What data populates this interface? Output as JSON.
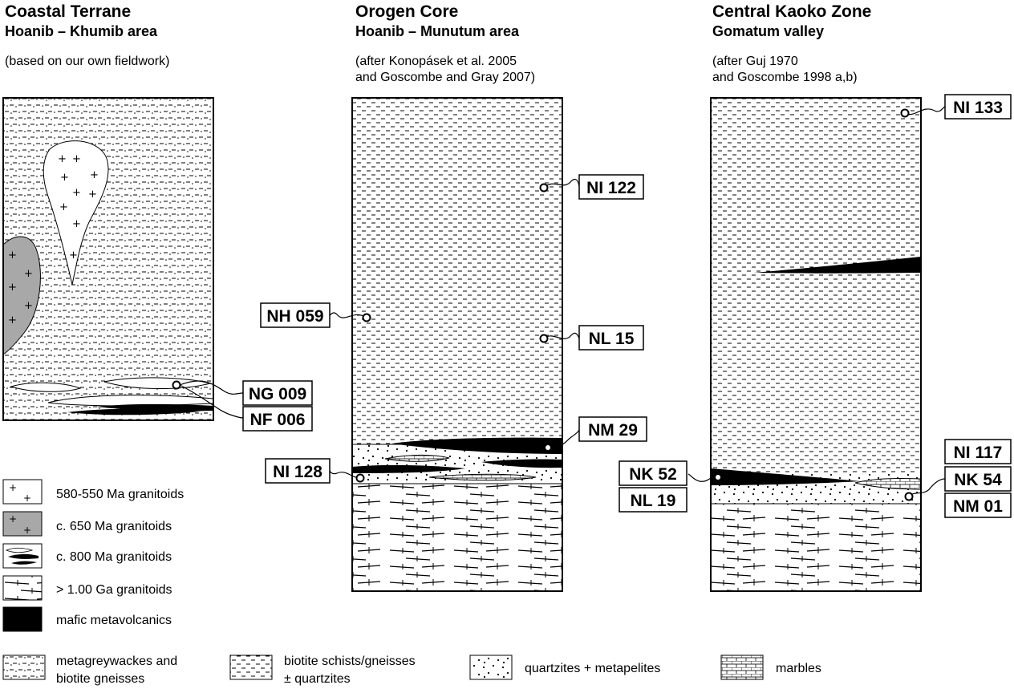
{
  "columns": [
    {
      "title": "Coastal Terrane",
      "subtitle": "Hoanib – Khumib area",
      "source_lines": [
        "(based on our own fieldwork)"
      ]
    },
    {
      "title": "Orogen Core",
      "subtitle": "Hoanib – Munutum area",
      "source_lines": [
        "(after Konopásek et al. 2005",
        "and Goscombe and Gray 2007)"
      ]
    },
    {
      "title": "Central Kaoko Zone",
      "subtitle": "Gomatum valley",
      "source_lines": [
        "(after Guj 1970",
        "and Goscombe 1998 a,b)"
      ]
    }
  ],
  "samples": {
    "ng009": "NG 009",
    "nf006": "NF 006",
    "ni122": "NI 122",
    "nh059": "NH 059",
    "nl15": "NL 15",
    "nm29": "NM 29",
    "ni128": "NI 128",
    "ni133": "NI 133",
    "ni117": "NI 117",
    "nk52": "NK 52",
    "nk54": "NK 54",
    "nl19": "NL 19",
    "nm01": "NM 01"
  },
  "legend_left": [
    {
      "id": "granitoids-580",
      "label": "580-550 Ma granitoids"
    },
    {
      "id": "granitoids-650",
      "label": "c. 650 Ma granitoids"
    },
    {
      "id": "granitoids-800",
      "label": "c. 800 Ma granitoids"
    },
    {
      "id": "granitoids-1ga",
      "label": "> 1.00 Ga granitoids"
    },
    {
      "id": "mafic",
      "label": "mafic metavolcanics"
    }
  ],
  "legend_bottom": [
    {
      "id": "metagreywackes",
      "lines": [
        "metagreywackes and",
        "biotite gneisses"
      ]
    },
    {
      "id": "schists",
      "lines": [
        "biotite schists/gneisses",
        "± quartzites"
      ]
    },
    {
      "id": "quartzites",
      "lines": [
        "quartzites + metapelites"
      ]
    },
    {
      "id": "marbles",
      "lines": [
        "marbles"
      ]
    }
  ],
  "colors": {
    "mafic": "#000000",
    "granitoid-650": "#a8a8a8",
    "background": "#ffffff"
  }
}
